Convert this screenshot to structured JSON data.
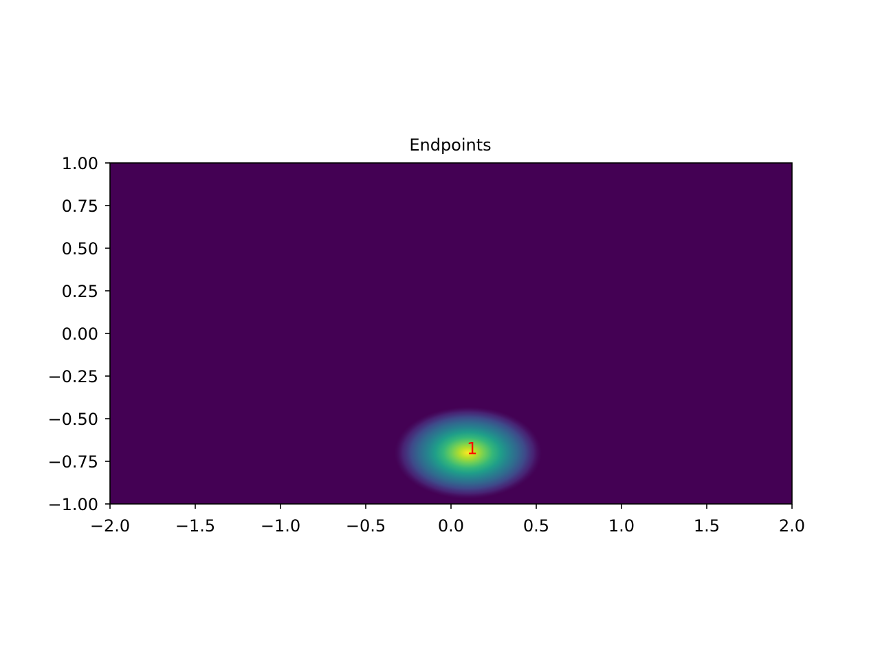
{
  "chart_data": {
    "type": "heatmap",
    "title": "Endpoints",
    "xlabel": "",
    "ylabel": "",
    "xlim": [
      -2.0,
      2.0
    ],
    "ylim": [
      -1.0,
      1.0
    ],
    "xticks": [
      {
        "value": -2.0,
        "label": "−2.0"
      },
      {
        "value": -1.5,
        "label": "−1.5"
      },
      {
        "value": -1.0,
        "label": "−1.0"
      },
      {
        "value": -0.5,
        "label": "−0.5"
      },
      {
        "value": 0.0,
        "label": "0.0"
      },
      {
        "value": 0.5,
        "label": "0.5"
      },
      {
        "value": 1.0,
        "label": "1.0"
      },
      {
        "value": 1.5,
        "label": "1.5"
      },
      {
        "value": 2.0,
        "label": "2.0"
      }
    ],
    "yticks": [
      {
        "value": 1.0,
        "label": "1.00"
      },
      {
        "value": 0.75,
        "label": "0.75"
      },
      {
        "value": 0.5,
        "label": "0.50"
      },
      {
        "value": 0.25,
        "label": "0.25"
      },
      {
        "value": 0.0,
        "label": "0.00"
      },
      {
        "value": -0.25,
        "label": "−0.25"
      },
      {
        "value": -0.5,
        "label": "−0.50"
      },
      {
        "value": -0.75,
        "label": "−0.75"
      },
      {
        "value": -1.0,
        "label": "−1.00"
      }
    ],
    "colormap": "viridis",
    "grid": false,
    "peaks": [
      {
        "x": 0.1,
        "y": -0.7,
        "sigma_x": 0.16,
        "sigma_y": 0.1,
        "label": "1",
        "label_color": "#ff0000"
      }
    ],
    "colors": {
      "background": "#440154",
      "peak": "#fde725",
      "annotation": "#ff0000"
    }
  }
}
